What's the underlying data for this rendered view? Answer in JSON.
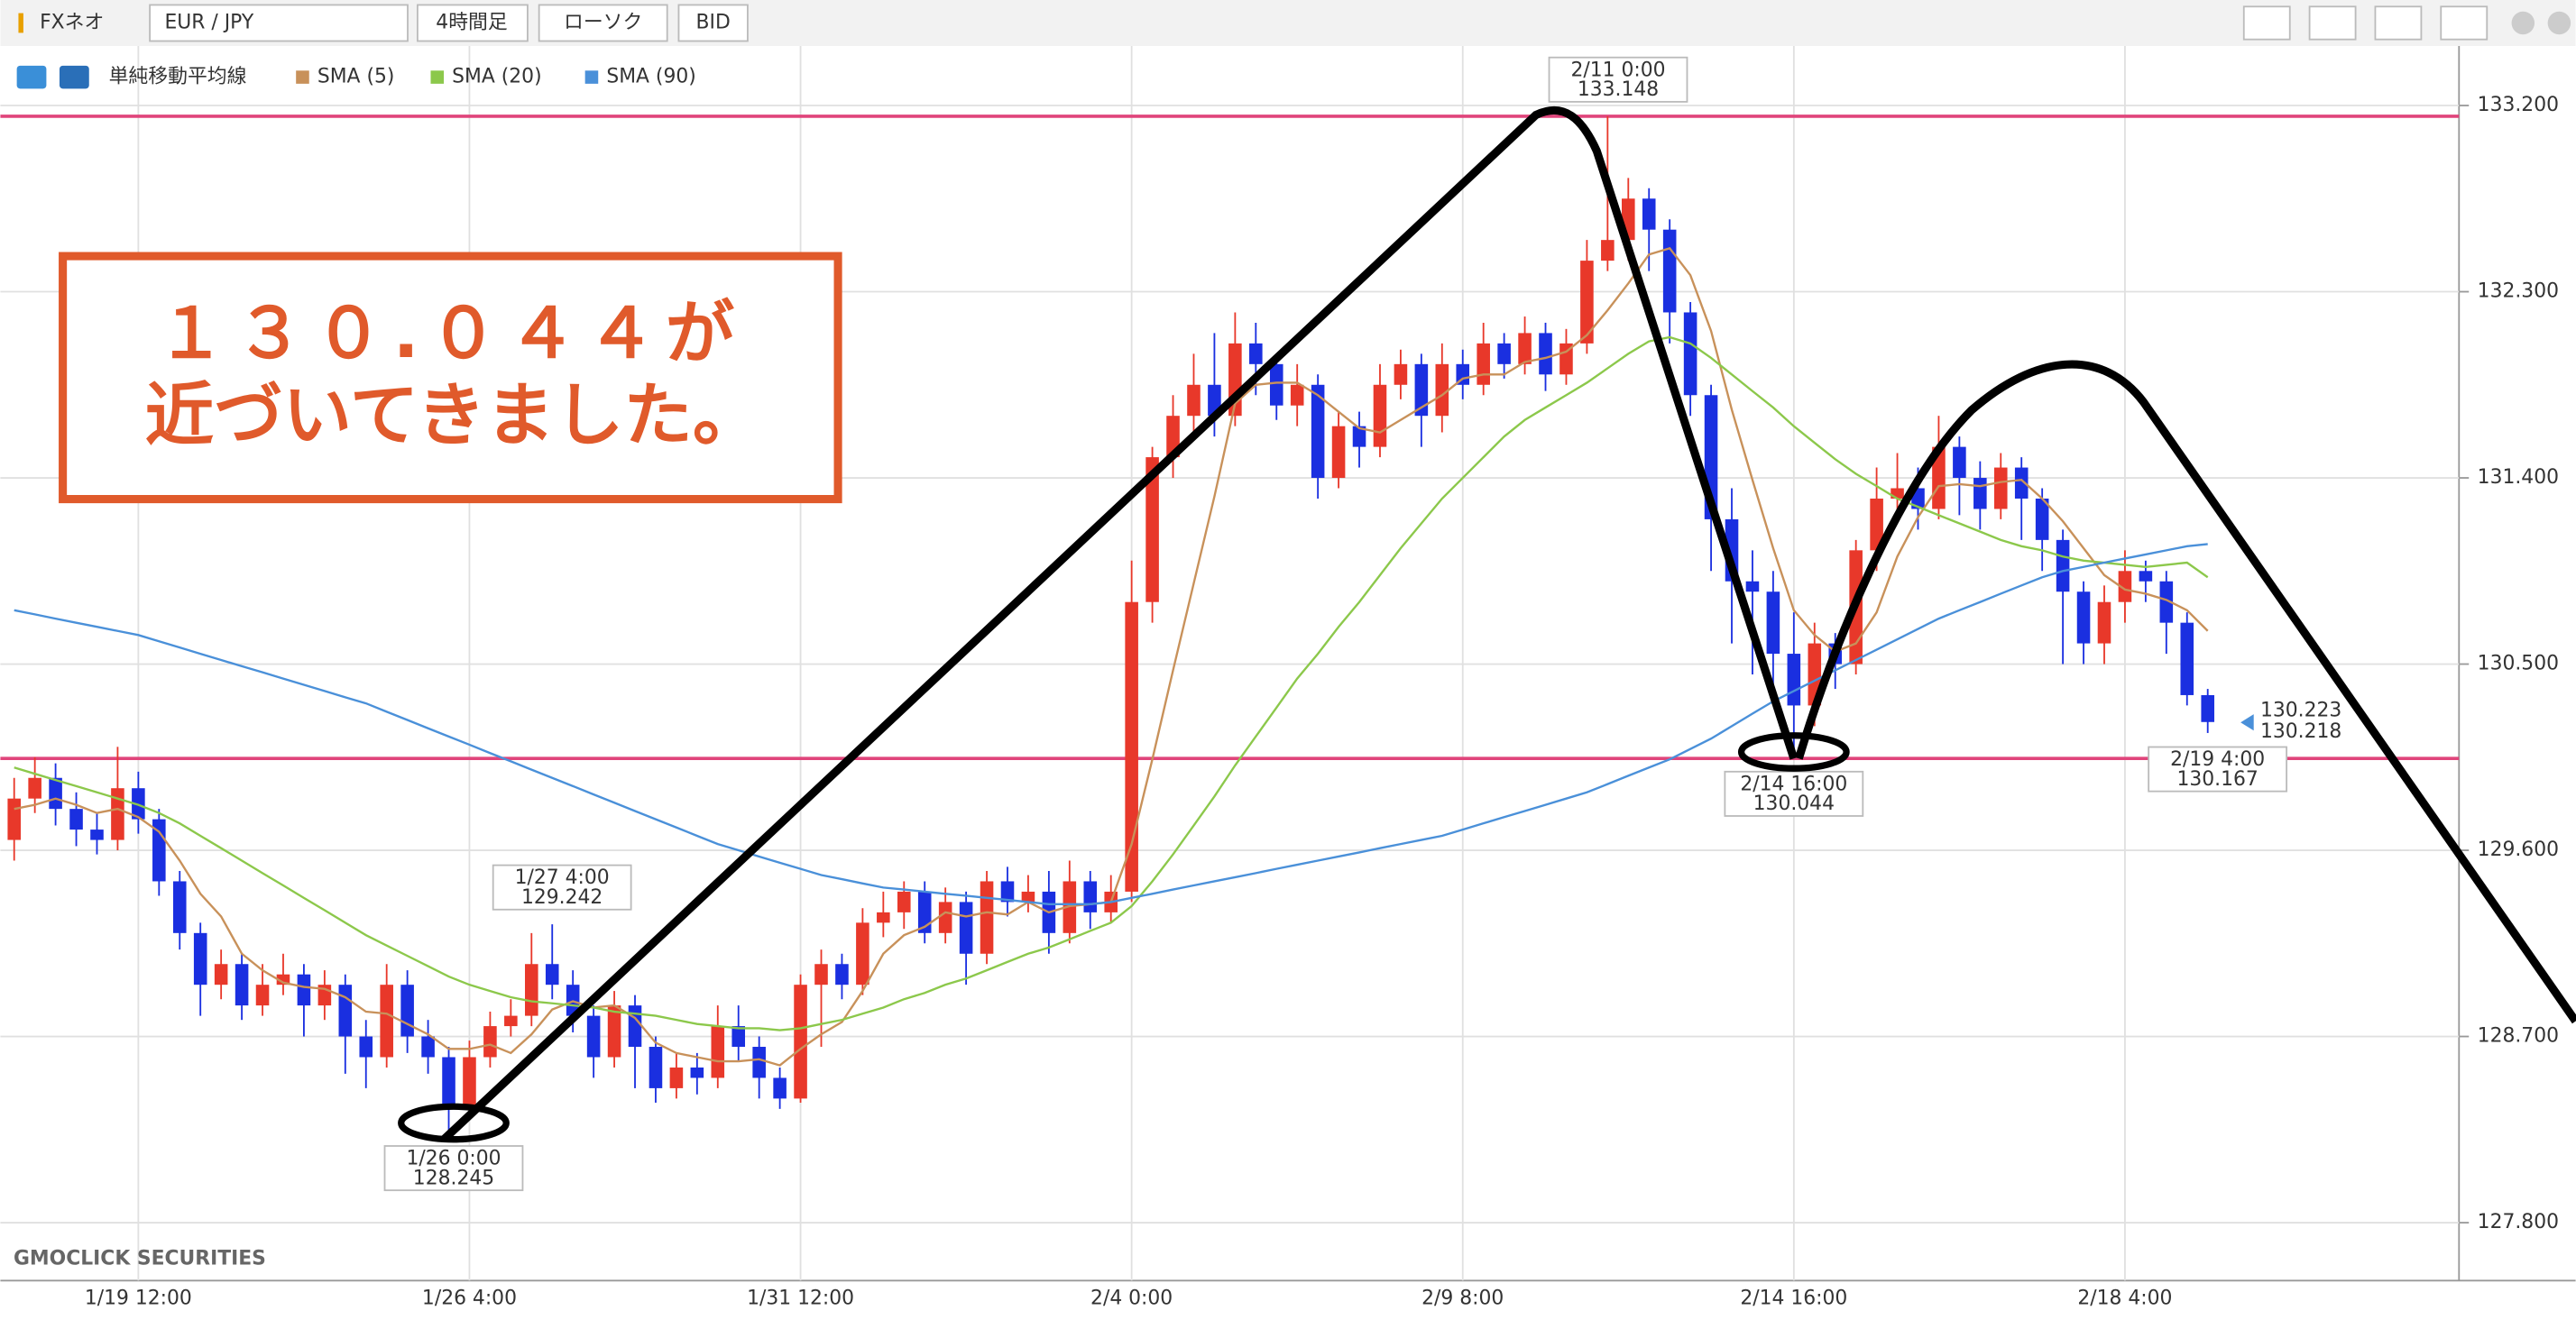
{
  "toolbar": {
    "app": "FXネオ",
    "pair": "EUR / JPY",
    "timeframe": "4時間足",
    "chart_style": "ローソク",
    "price_type": "BID"
  },
  "watermark": "GMOCLICK SECURITIES",
  "overlay_text": [
    "１３０.０４４が",
    "近づいてきました。"
  ],
  "chart_data": {
    "type": "candlestick",
    "indicator_title": "単純移動平均線",
    "up_color": "#e8382a",
    "down_color": "#1a2fe0",
    "grid": true,
    "ylim": [
      127.52,
      133.71
    ],
    "yticks": [
      {
        "value": 127.8,
        "label": "127.800"
      },
      {
        "value": 128.7,
        "label": "128.700"
      },
      {
        "value": 129.6,
        "label": "129.600"
      },
      {
        "value": 130.5,
        "label": "130.500"
      },
      {
        "value": 131.4,
        "label": "131.400"
      },
      {
        "value": 132.3,
        "label": "132.300"
      },
      {
        "value": 133.2,
        "label": "133.200"
      }
    ],
    "categories": [
      null,
      null,
      null,
      null,
      null,
      null,
      "1/19 12:00",
      null,
      null,
      null,
      null,
      null,
      null,
      null,
      null,
      null,
      null,
      null,
      null,
      null,
      null,
      null,
      "1/26 4:00",
      null,
      null,
      null,
      null,
      null,
      null,
      null,
      null,
      null,
      null,
      null,
      null,
      null,
      null,
      null,
      "1/31 12:00",
      null,
      null,
      null,
      null,
      null,
      null,
      null,
      null,
      null,
      null,
      null,
      null,
      null,
      null,
      null,
      "2/4 0:00",
      null,
      null,
      null,
      null,
      null,
      null,
      null,
      null,
      null,
      null,
      null,
      null,
      null,
      null,
      null,
      "2/9 8:00",
      null,
      null,
      null,
      null,
      null,
      null,
      null,
      null,
      null,
      null,
      null,
      null,
      null,
      null,
      null,
      "2/14 16:00",
      null,
      null,
      null,
      null,
      null,
      null,
      null,
      null,
      null,
      null,
      null,
      null,
      null,
      null,
      null,
      "2/18 4:00",
      null,
      null,
      null,
      null
    ],
    "open": [
      129.65,
      129.85,
      129.95,
      129.8,
      129.7,
      129.65,
      129.9,
      129.75,
      129.45,
      129.2,
      128.95,
      129.05,
      128.85,
      128.95,
      129.0,
      128.85,
      128.95,
      128.7,
      128.6,
      128.95,
      128.7,
      128.6,
      128.35,
      128.6,
      128.75,
      128.8,
      129.05,
      128.95,
      128.8,
      128.6,
      128.85,
      128.65,
      128.45,
      128.55,
      128.5,
      128.75,
      128.65,
      128.5,
      128.4,
      128.95,
      129.05,
      128.95,
      129.25,
      129.3,
      129.4,
      129.2,
      129.35,
      129.1,
      129.45,
      129.35,
      129.4,
      129.2,
      129.45,
      129.3,
      129.4,
      130.8,
      131.5,
      131.7,
      131.85,
      131.7,
      132.05,
      131.95,
      131.75,
      131.85,
      131.4,
      131.65,
      131.55,
      131.85,
      131.95,
      131.7,
      131.95,
      131.85,
      132.05,
      131.95,
      132.1,
      131.9,
      132.05,
      132.45,
      132.55,
      132.75,
      132.6,
      132.2,
      131.8,
      131.2,
      130.9,
      130.85,
      130.55,
      130.3,
      130.6,
      130.5,
      131.05,
      131.3,
      131.35,
      131.25,
      131.55,
      131.4,
      131.25,
      131.45,
      131.3,
      131.1,
      130.85,
      130.6,
      130.8,
      130.95,
      130.9,
      130.7,
      130.35
    ],
    "high": [
      129.95,
      130.05,
      130.02,
      129.88,
      129.78,
      130.1,
      129.98,
      129.8,
      129.5,
      129.25,
      129.12,
      129.1,
      129.05,
      129.1,
      129.05,
      129.02,
      129.0,
      128.78,
      129.05,
      129.02,
      128.78,
      128.65,
      128.68,
      128.82,
      128.88,
      129.2,
      129.242,
      129.02,
      128.85,
      128.92,
      128.9,
      128.7,
      128.62,
      128.62,
      128.85,
      128.85,
      128.7,
      128.55,
      129.0,
      129.12,
      129.1,
      129.32,
      129.4,
      129.45,
      129.45,
      129.42,
      129.4,
      129.5,
      129.52,
      129.48,
      129.5,
      129.55,
      129.5,
      129.48,
      131.0,
      131.55,
      131.8,
      132.0,
      132.1,
      132.2,
      132.15,
      132.0,
      131.95,
      131.9,
      131.72,
      131.72,
      131.95,
      132.02,
      132.0,
      132.05,
      132.02,
      132.15,
      132.1,
      132.18,
      132.15,
      132.12,
      132.55,
      133.148,
      132.85,
      132.8,
      132.65,
      132.25,
      131.85,
      131.35,
      131.05,
      130.95,
      130.75,
      130.7,
      130.65,
      131.1,
      131.45,
      131.52,
      131.45,
      131.7,
      131.6,
      131.48,
      131.52,
      131.5,
      131.35,
      131.15,
      130.9,
      130.88,
      131.05,
      131.0,
      130.95,
      130.75,
      130.38
    ],
    "low": [
      129.55,
      129.78,
      129.72,
      129.62,
      129.58,
      129.6,
      129.68,
      129.38,
      129.12,
      128.8,
      128.88,
      128.78,
      128.8,
      128.9,
      128.7,
      128.78,
      128.52,
      128.45,
      128.55,
      128.62,
      128.52,
      128.245,
      128.3,
      128.55,
      128.7,
      128.75,
      128.88,
      128.72,
      128.5,
      128.55,
      128.45,
      128.38,
      128.4,
      128.42,
      128.45,
      128.58,
      128.4,
      128.35,
      128.38,
      128.65,
      128.88,
      128.9,
      129.18,
      129.22,
      129.15,
      129.15,
      128.95,
      129.05,
      129.28,
      129.3,
      129.1,
      129.15,
      129.22,
      129.25,
      129.35,
      130.7,
      131.4,
      131.62,
      131.6,
      131.65,
      131.8,
      131.68,
      131.65,
      131.3,
      131.35,
      131.45,
      131.5,
      131.78,
      131.55,
      131.62,
      131.78,
      131.8,
      131.88,
      131.9,
      131.82,
      131.85,
      132.0,
      132.4,
      132.45,
      132.4,
      132.05,
      131.7,
      130.95,
      130.6,
      130.45,
      130.4,
      130.044,
      130.2,
      130.38,
      130.45,
      130.95,
      131.2,
      131.15,
      131.2,
      131.22,
      131.15,
      131.2,
      131.1,
      130.95,
      130.5,
      130.5,
      130.5,
      130.7,
      130.8,
      130.55,
      130.3,
      130.167
    ],
    "close": [
      129.85,
      129.95,
      129.8,
      129.7,
      129.65,
      129.9,
      129.75,
      129.45,
      129.2,
      128.95,
      129.05,
      128.85,
      128.95,
      129.0,
      128.85,
      128.95,
      128.7,
      128.6,
      128.95,
      128.7,
      128.6,
      128.35,
      128.6,
      128.75,
      128.8,
      129.05,
      128.95,
      128.8,
      128.6,
      128.85,
      128.65,
      128.45,
      128.55,
      128.5,
      128.75,
      128.65,
      128.5,
      128.4,
      128.95,
      129.05,
      128.95,
      129.25,
      129.3,
      129.4,
      129.2,
      129.35,
      129.1,
      129.45,
      129.35,
      129.4,
      129.2,
      129.45,
      129.3,
      129.4,
      130.8,
      131.5,
      131.7,
      131.85,
      131.7,
      132.05,
      131.95,
      131.75,
      131.85,
      131.4,
      131.65,
      131.55,
      131.85,
      131.95,
      131.7,
      131.95,
      131.85,
      132.05,
      131.95,
      132.1,
      131.9,
      132.05,
      132.45,
      132.55,
      132.75,
      132.6,
      132.2,
      131.8,
      131.2,
      130.9,
      130.85,
      130.55,
      130.3,
      130.6,
      130.5,
      131.05,
      131.3,
      131.35,
      131.25,
      131.55,
      131.4,
      131.25,
      131.45,
      131.3,
      131.1,
      130.85,
      130.6,
      130.8,
      130.95,
      130.9,
      130.7,
      130.35,
      130.22
    ],
    "series": [
      {
        "name": "SMA (5)",
        "color": "#c8915a",
        "values": [
          129.8,
          129.82,
          129.85,
          129.82,
          129.78,
          129.8,
          129.76,
          129.69,
          129.55,
          129.39,
          129.28,
          129.1,
          129.02,
          128.96,
          128.94,
          128.93,
          128.89,
          128.82,
          128.81,
          128.76,
          128.71,
          128.64,
          128.64,
          128.66,
          128.62,
          128.71,
          128.83,
          128.87,
          128.84,
          128.85,
          128.79,
          128.67,
          128.62,
          128.6,
          128.58,
          128.58,
          128.59,
          128.56,
          128.64,
          128.71,
          128.77,
          128.92,
          129.1,
          129.19,
          129.23,
          129.3,
          129.28,
          129.3,
          129.29,
          129.35,
          129.3,
          129.33,
          129.34,
          129.35,
          129.63,
          130.04,
          130.47,
          130.89,
          131.31,
          131.76,
          131.85,
          131.86,
          131.86,
          131.8,
          131.72,
          131.64,
          131.62,
          131.68,
          131.74,
          131.8,
          131.88,
          131.9,
          131.9,
          131.96,
          131.98,
          132.01,
          132.09,
          132.21,
          132.34,
          132.48,
          132.51,
          132.38,
          132.11,
          131.73,
          131.39,
          131.06,
          130.76,
          130.64,
          130.56,
          130.6,
          130.75,
          131.02,
          131.21,
          131.36,
          131.37,
          131.36,
          131.38,
          131.39,
          131.3,
          131.19,
          131.06,
          130.93,
          130.86,
          130.84,
          130.81,
          130.76,
          130.66
        ]
      },
      {
        "name": "SMA (20)",
        "color": "#8cc84b",
        "values": [
          130.0,
          129.97,
          129.94,
          129.91,
          129.88,
          129.85,
          129.82,
          129.78,
          129.73,
          129.67,
          129.61,
          129.55,
          129.49,
          129.43,
          129.37,
          129.31,
          129.25,
          129.19,
          129.14,
          129.09,
          129.04,
          128.99,
          128.95,
          128.92,
          128.89,
          128.87,
          128.86,
          128.85,
          128.84,
          128.82,
          128.81,
          128.8,
          128.78,
          128.76,
          128.75,
          128.74,
          128.74,
          128.73,
          128.74,
          128.76,
          128.78,
          128.81,
          128.84,
          128.88,
          128.91,
          128.95,
          128.98,
          129.02,
          129.06,
          129.1,
          129.13,
          129.17,
          129.21,
          129.25,
          129.33,
          129.45,
          129.58,
          129.72,
          129.86,
          130.01,
          130.15,
          130.29,
          130.43,
          130.55,
          130.68,
          130.8,
          130.93,
          131.06,
          131.18,
          131.3,
          131.4,
          131.5,
          131.6,
          131.68,
          131.74,
          131.8,
          131.86,
          131.93,
          132.0,
          132.06,
          132.08,
          132.05,
          131.98,
          131.9,
          131.82,
          131.74,
          131.65,
          131.57,
          131.49,
          131.42,
          131.36,
          131.3,
          131.26,
          131.22,
          131.18,
          131.14,
          131.1,
          131.07,
          131.05,
          131.02,
          131.0,
          130.99,
          130.98,
          130.97,
          130.98,
          130.99,
          130.92
        ]
      },
      {
        "name": "SMA (90)",
        "color": "#4a90d9",
        "values": [
          130.76,
          130.74,
          130.72,
          130.7,
          130.68,
          130.66,
          130.64,
          130.61,
          130.58,
          130.55,
          130.52,
          130.49,
          130.46,
          130.43,
          130.4,
          130.37,
          130.34,
          130.31,
          130.27,
          130.23,
          130.19,
          130.15,
          130.11,
          130.07,
          130.03,
          129.99,
          129.95,
          129.91,
          129.87,
          129.83,
          129.79,
          129.75,
          129.71,
          129.67,
          129.63,
          129.6,
          129.57,
          129.54,
          129.51,
          129.48,
          129.46,
          129.44,
          129.42,
          129.41,
          129.4,
          129.39,
          129.38,
          129.37,
          129.36,
          129.35,
          129.34,
          129.34,
          129.34,
          129.35,
          129.37,
          129.39,
          129.41,
          129.43,
          129.45,
          129.47,
          129.49,
          129.51,
          129.53,
          129.55,
          129.57,
          129.59,
          129.61,
          129.63,
          129.65,
          129.67,
          129.7,
          129.73,
          129.76,
          129.79,
          129.82,
          129.85,
          129.88,
          129.92,
          129.96,
          130.0,
          130.04,
          130.09,
          130.14,
          130.2,
          130.26,
          130.32,
          130.37,
          130.42,
          130.47,
          130.52,
          130.57,
          130.62,
          130.67,
          130.72,
          130.76,
          130.8,
          130.84,
          130.88,
          130.92,
          130.95,
          130.97,
          130.99,
          131.01,
          131.03,
          131.05,
          131.07,
          131.08
        ]
      }
    ],
    "annotations": [
      {
        "time": "2/11 0:00",
        "value": 133.148
      },
      {
        "time": "1/27 4:00",
        "value": 129.242
      },
      {
        "time": "1/26 0:00",
        "value": 128.245
      },
      {
        "time": "2/14 16:00",
        "value": 130.044
      },
      {
        "time": "2/19 4:00",
        "value": 130.167
      }
    ],
    "price_line_color": "#e0457b",
    "last_values": [
      {
        "value": 130.223,
        "color": "#e53935"
      },
      {
        "value": 130.218,
        "color": "#4a90d9"
      }
    ]
  }
}
